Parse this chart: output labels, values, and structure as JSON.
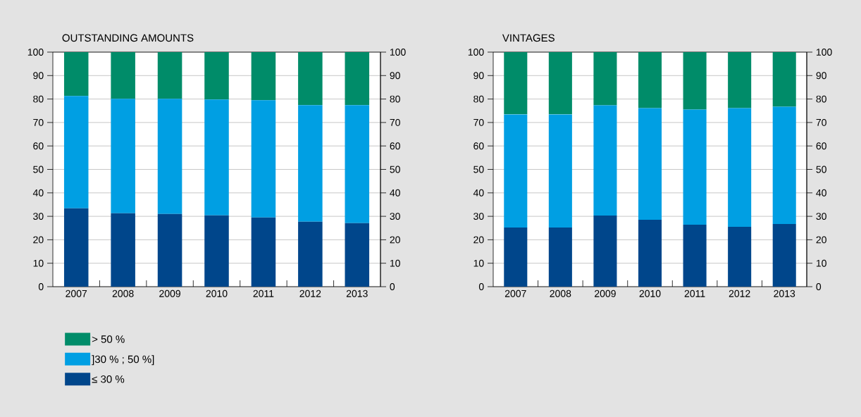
{
  "chart_data": [
    {
      "type": "bar",
      "title": "OUTSTANDING AMOUNTS",
      "stacked": true,
      "categories": [
        "2007",
        "2008",
        "2009",
        "2010",
        "2011",
        "2012",
        "2013"
      ],
      "series": [
        {
          "name": "≤ 30 %",
          "color": "#00468b",
          "values": [
            33.4,
            31.3,
            31.0,
            30.4,
            29.5,
            27.7,
            27.1
          ]
        },
        {
          "name": "]30 % ; 50 %]",
          "color": "#009fe3",
          "values": [
            47.9,
            48.8,
            49.1,
            49.4,
            50.0,
            49.7,
            50.3
          ]
        },
        {
          "name": "> 50 %",
          "color": "#008c69",
          "values": [
            18.7,
            19.9,
            19.9,
            20.2,
            20.5,
            22.6,
            22.6
          ]
        }
      ],
      "ylim": [
        0,
        100
      ],
      "yticks": [
        0,
        10,
        20,
        30,
        40,
        50,
        60,
        70,
        80,
        90,
        100
      ],
      "y2lim": [
        0,
        100
      ],
      "y2ticks": [
        0,
        10,
        20,
        30,
        40,
        50,
        60,
        70,
        80,
        90,
        100
      ],
      "grid": "y",
      "legend": "bottom"
    },
    {
      "type": "bar",
      "title": "VINTAGES",
      "stacked": true,
      "categories": [
        "2007",
        "2008",
        "2009",
        "2010",
        "2011",
        "2012",
        "2013"
      ],
      "series": [
        {
          "color": "#00468b",
          "values": [
            25.2,
            25.2,
            30.3,
            28.5,
            26.4,
            25.5,
            26.7
          ]
        },
        {
          "color": "#009fe3",
          "values": [
            48.2,
            48.2,
            47.0,
            47.6,
            49.1,
            50.6,
            50.0
          ]
        },
        {
          "color": "#008c69",
          "values": [
            26.6,
            26.6,
            22.7,
            23.9,
            24.5,
            23.9,
            23.3
          ]
        }
      ],
      "ylim": [
        0,
        100
      ],
      "yticks": [
        0,
        10,
        20,
        30,
        40,
        50,
        60,
        70,
        80,
        90,
        100
      ],
      "y2lim": [
        0,
        100
      ],
      "y2ticks": [
        0,
        10,
        20,
        30,
        40,
        50,
        60,
        70,
        80,
        90,
        100
      ],
      "grid": "y"
    }
  ]
}
